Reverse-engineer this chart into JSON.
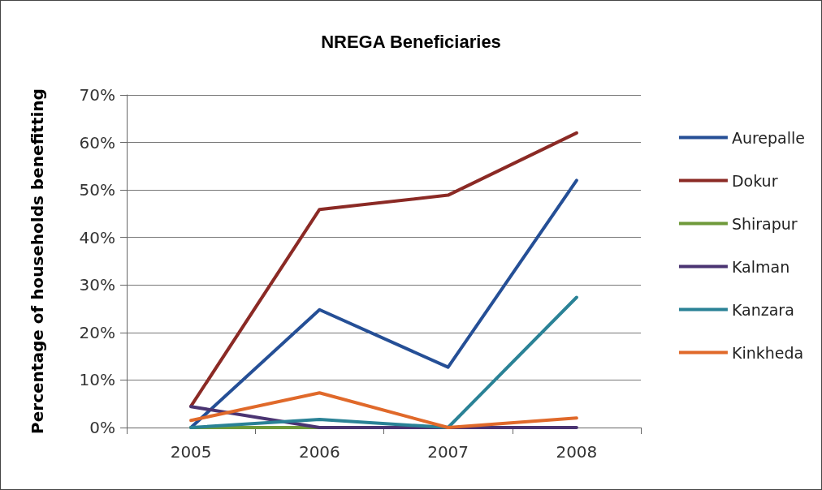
{
  "chart_data": {
    "type": "line",
    "title": "NREGA Beneficiaries",
    "ylabel": "Percentage of households benefitting",
    "categories": [
      "2005",
      "2006",
      "2007",
      "2008"
    ],
    "series": [
      {
        "name": "Aurepalle",
        "color": "#254f96",
        "values": [
          0,
          24.8,
          12.7,
          52
        ]
      },
      {
        "name": "Dokur",
        "color": "#8b2a25",
        "values": [
          4.5,
          45.9,
          48.9,
          62
        ]
      },
      {
        "name": "Shirapur",
        "color": "#6f9a3a",
        "values": [
          0,
          0,
          null,
          null
        ]
      },
      {
        "name": "Kalman",
        "color": "#4a3472",
        "values": [
          4.4,
          0,
          0,
          0
        ]
      },
      {
        "name": "Kanzara",
        "color": "#2a8296",
        "values": [
          0,
          1.7,
          0,
          27.4
        ]
      },
      {
        "name": "Kinkheda",
        "color": "#e0692a",
        "values": [
          1.5,
          7.3,
          0,
          2
        ]
      }
    ],
    "ylim": [
      0,
      70
    ],
    "yticks": [
      {
        "value": 0,
        "label": "0%"
      },
      {
        "value": 10,
        "label": "10%"
      },
      {
        "value": 20,
        "label": "20%"
      },
      {
        "value": 30,
        "label": "30%"
      },
      {
        "value": 40,
        "label": "40%"
      },
      {
        "value": 50,
        "label": "50%"
      },
      {
        "value": 60,
        "label": "60%"
      },
      {
        "value": 70,
        "label": "70%"
      }
    ],
    "grid": "y",
    "legend": "right",
    "marker": "none",
    "line_style": "solid"
  }
}
